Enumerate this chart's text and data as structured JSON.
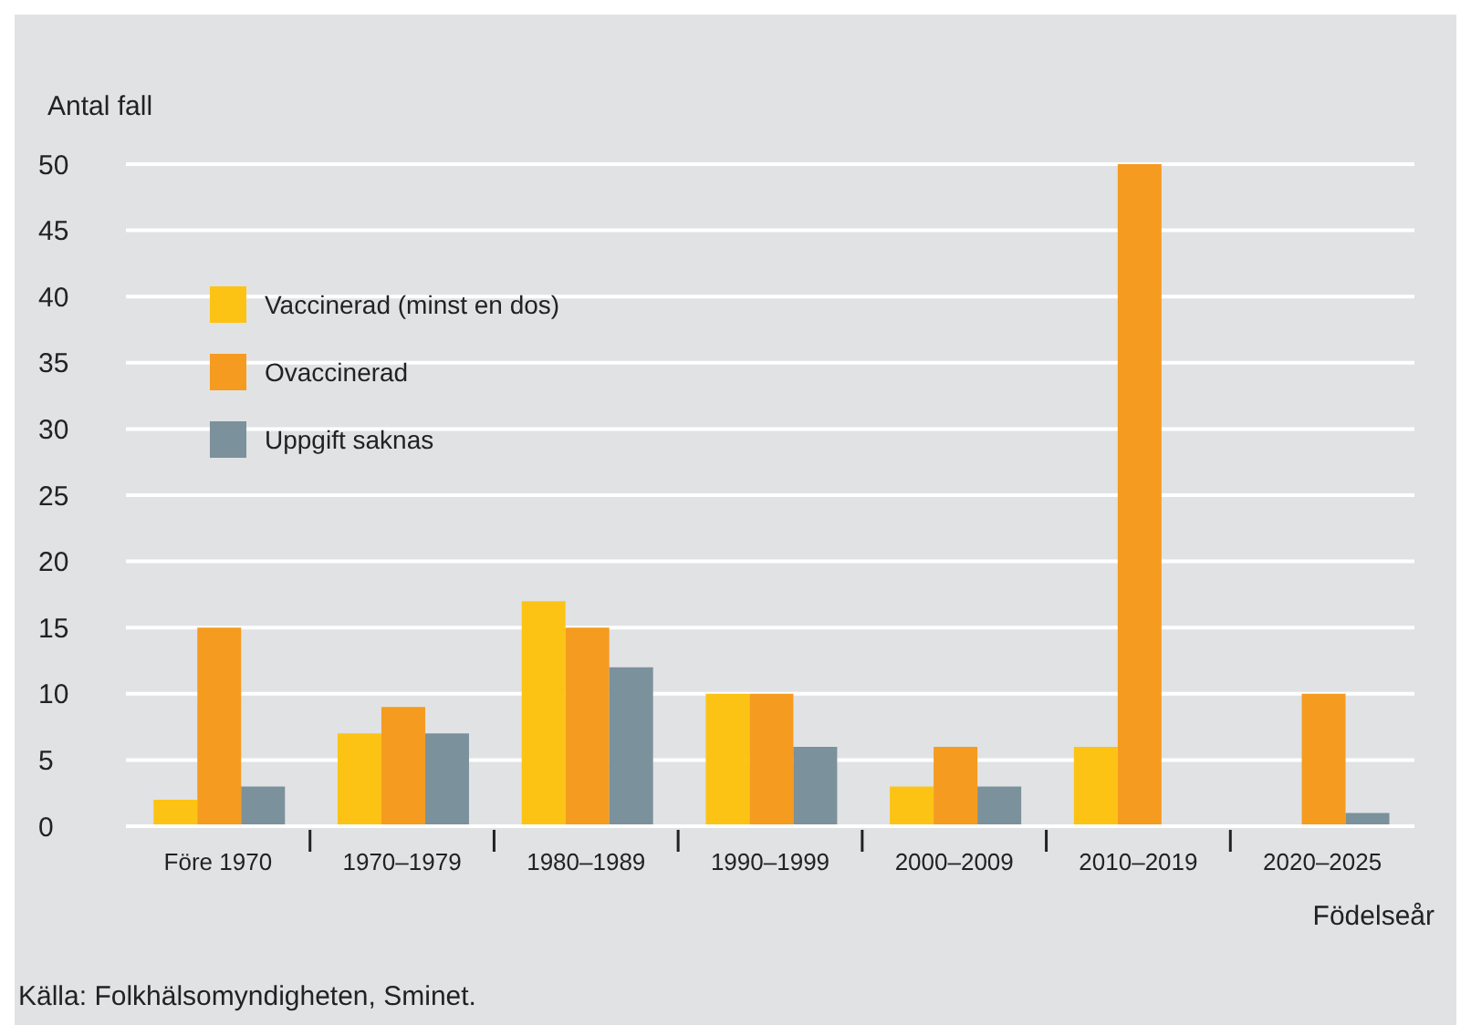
{
  "chart_data": {
    "type": "bar",
    "xlabel": "Födelseår",
    "ylabel": "Antal fall",
    "annotations": [
      "Källa: Folkhälsomyndigheten, Sminet."
    ],
    "categories": [
      "Före 1970",
      "1970–1979",
      "1980–1989",
      "1990–1999",
      "2000–2009",
      "2010–2019",
      "2020–2025"
    ],
    "series": [
      {
        "name": "Vaccinerad (minst en dos)",
        "color": "#fdc314",
        "values": [
          2,
          7,
          17,
          10,
          3,
          6,
          0
        ]
      },
      {
        "name": "Ovaccinerad",
        "color": "#f59b1f",
        "values": [
          15,
          9,
          15,
          10,
          6,
          50,
          10
        ]
      },
      {
        "name": "Uppgift saknas",
        "color": "#7b919c",
        "values": [
          3,
          7,
          12,
          6,
          3,
          0,
          1
        ]
      }
    ],
    "ylim": [
      0,
      50
    ],
    "yticks": [
      0,
      5,
      10,
      15,
      20,
      25,
      30,
      35,
      40,
      45,
      50
    ],
    "grid": "y",
    "legend": "top left"
  }
}
